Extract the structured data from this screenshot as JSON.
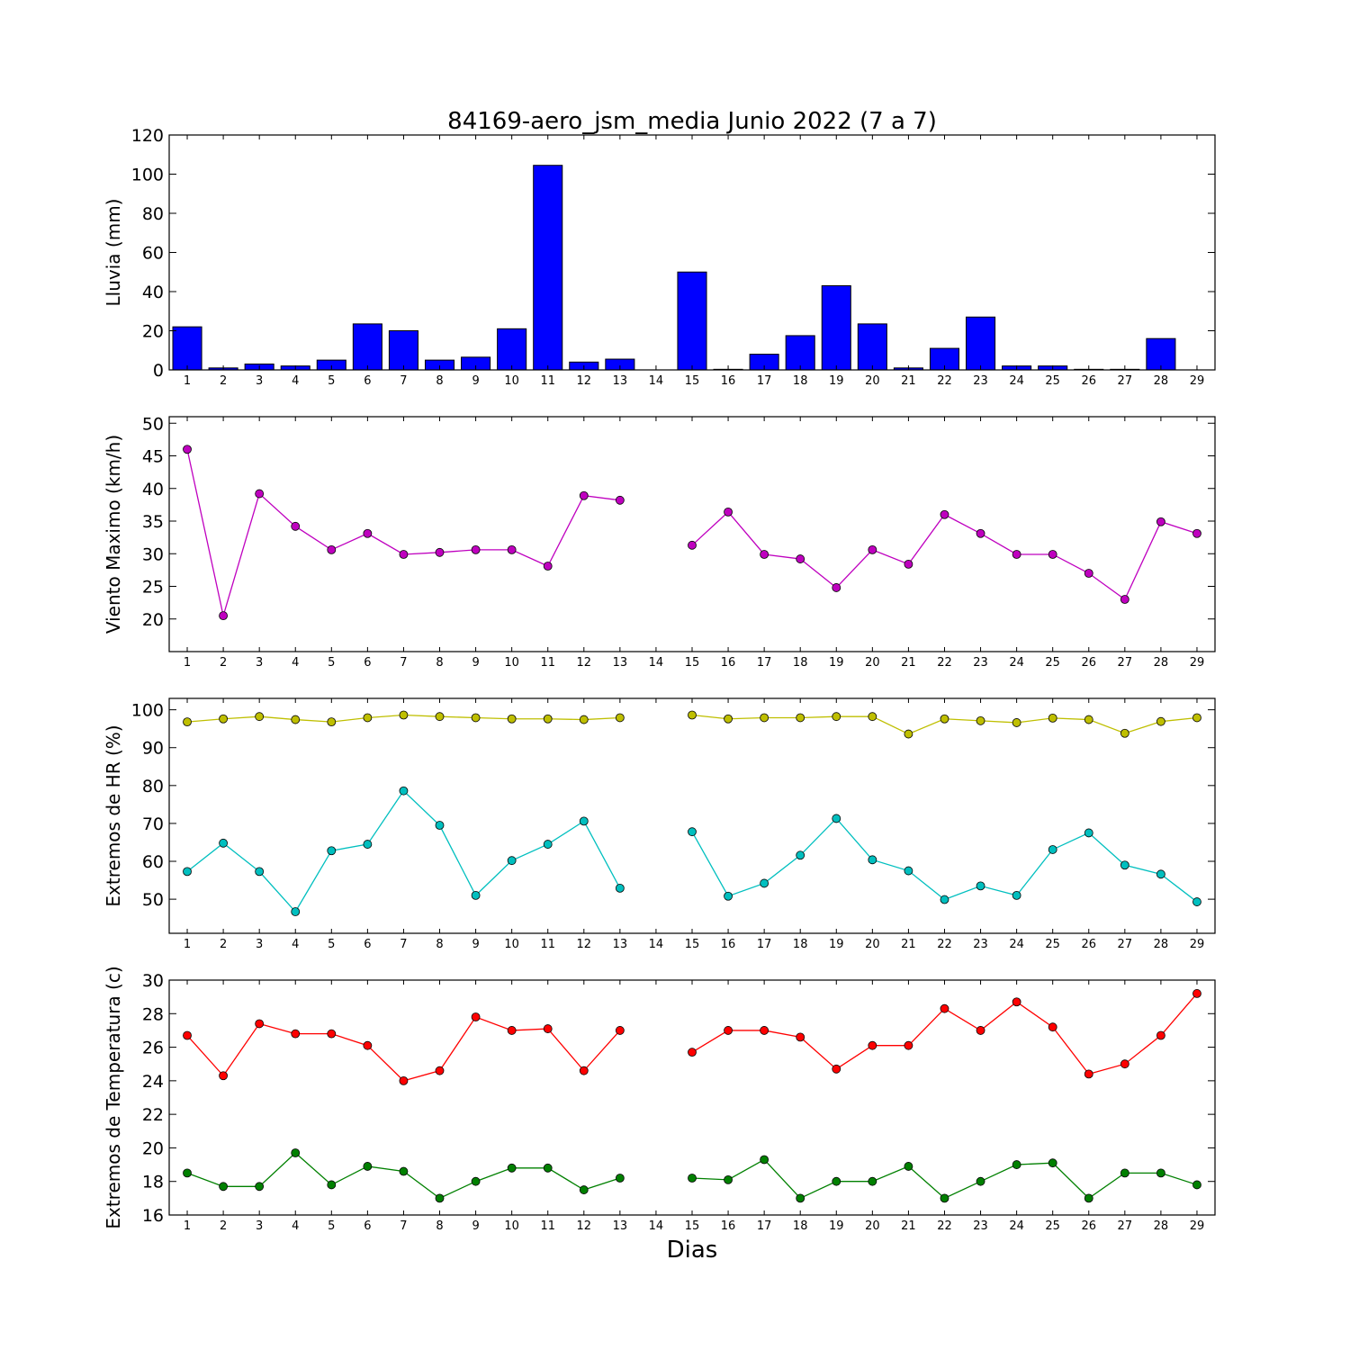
{
  "title": "84169-aero_jsm_media Junio 2022  (7 a 7)",
  "xlabel": "Dias",
  "chart_data": [
    {
      "type": "bar",
      "ylabel": "Lluvia (mm)",
      "ylim": [
        0,
        120
      ],
      "yticks": [
        0,
        20,
        40,
        60,
        80,
        100,
        120
      ],
      "categories": [
        1,
        2,
        3,
        4,
        5,
        6,
        7,
        8,
        9,
        10,
        11,
        12,
        13,
        14,
        15,
        16,
        17,
        18,
        19,
        20,
        21,
        22,
        23,
        24,
        25,
        26,
        27,
        28,
        29
      ],
      "series": [
        {
          "color": "#0000ff",
          "values": [
            22.0,
            1.0,
            3.0,
            2.0,
            5.0,
            23.5,
            20.0,
            5.0,
            6.5,
            21.0,
            104.5,
            4.0,
            5.5,
            0,
            50.0,
            0.3,
            8.0,
            17.5,
            43.0,
            23.5,
            1.0,
            11.0,
            27.0,
            2.0,
            2.0,
            0.3,
            0.3,
            16.0,
            0
          ]
        }
      ]
    },
    {
      "type": "line",
      "ylabel": "Viento Maximo (km/h)",
      "ylim": [
        15,
        51
      ],
      "yticks": [
        20,
        25,
        30,
        35,
        40,
        45,
        50
      ],
      "categories": [
        1,
        2,
        3,
        4,
        5,
        6,
        7,
        8,
        9,
        10,
        11,
        12,
        13,
        14,
        15,
        16,
        17,
        18,
        19,
        20,
        21,
        22,
        23,
        24,
        25,
        26,
        27,
        28,
        29
      ],
      "series": [
        {
          "color": "#bf00bf",
          "values": [
            46.0,
            20.5,
            39.2,
            34.2,
            30.6,
            33.1,
            29.9,
            30.2,
            30.6,
            30.6,
            28.1,
            38.9,
            38.2,
            null,
            31.3,
            36.4,
            29.9,
            29.2,
            24.8,
            30.6,
            28.4,
            36.0,
            33.1,
            29.9,
            29.9,
            27.0,
            23.0,
            34.9,
            33.1
          ]
        }
      ]
    },
    {
      "type": "line",
      "ylabel": "Extremos de HR (%)",
      "ylim": [
        41,
        103
      ],
      "yticks": [
        50,
        60,
        70,
        80,
        90,
        100
      ],
      "categories": [
        1,
        2,
        3,
        4,
        5,
        6,
        7,
        8,
        9,
        10,
        11,
        12,
        13,
        14,
        15,
        16,
        17,
        18,
        19,
        20,
        21,
        22,
        23,
        24,
        25,
        26,
        27,
        28,
        29
      ],
      "series": [
        {
          "color": "#bfbf00",
          "values": [
            96.8,
            97.6,
            98.2,
            97.4,
            96.8,
            97.9,
            98.6,
            98.2,
            97.9,
            97.6,
            97.6,
            97.4,
            97.9,
            null,
            98.6,
            97.6,
            97.9,
            97.9,
            98.2,
            98.2,
            93.6,
            97.6,
            97.1,
            96.6,
            97.8,
            97.4,
            93.8,
            96.9,
            97.9
          ]
        },
        {
          "color": "#00bfbf",
          "values": [
            57.3,
            64.8,
            57.3,
            46.7,
            62.8,
            64.5,
            78.6,
            69.5,
            51.0,
            60.2,
            64.5,
            70.6,
            52.9,
            null,
            67.8,
            50.8,
            54.2,
            61.6,
            71.3,
            60.4,
            57.5,
            49.9,
            53.5,
            51.0,
            63.1,
            67.5,
            59.0,
            56.6,
            49.3
          ]
        }
      ]
    },
    {
      "type": "line",
      "ylabel": "Extremos de Temperatura (c)",
      "ylim": [
        16,
        30
      ],
      "yticks": [
        16,
        18,
        20,
        22,
        24,
        26,
        28,
        30
      ],
      "categories": [
        1,
        2,
        3,
        4,
        5,
        6,
        7,
        8,
        9,
        10,
        11,
        12,
        13,
        14,
        15,
        16,
        17,
        18,
        19,
        20,
        21,
        22,
        23,
        24,
        25,
        26,
        27,
        28,
        29
      ],
      "series": [
        {
          "color": "#ff0000",
          "values": [
            26.7,
            24.3,
            27.4,
            26.8,
            26.8,
            26.1,
            24.0,
            24.6,
            27.8,
            27.0,
            27.1,
            24.6,
            27.0,
            null,
            25.7,
            27.0,
            27.0,
            26.6,
            24.7,
            26.1,
            26.1,
            28.3,
            27.0,
            28.7,
            27.2,
            24.4,
            25.0,
            26.7,
            29.2
          ]
        },
        {
          "color": "#008000",
          "values": [
            18.5,
            17.7,
            17.7,
            19.7,
            17.8,
            18.9,
            18.6,
            17.0,
            18.0,
            18.8,
            18.8,
            17.5,
            18.2,
            null,
            18.2,
            18.1,
            19.3,
            17.0,
            18.0,
            18.0,
            18.9,
            17.0,
            18.0,
            19.0,
            19.1,
            17.0,
            18.5,
            18.5,
            17.8
          ]
        }
      ]
    }
  ]
}
